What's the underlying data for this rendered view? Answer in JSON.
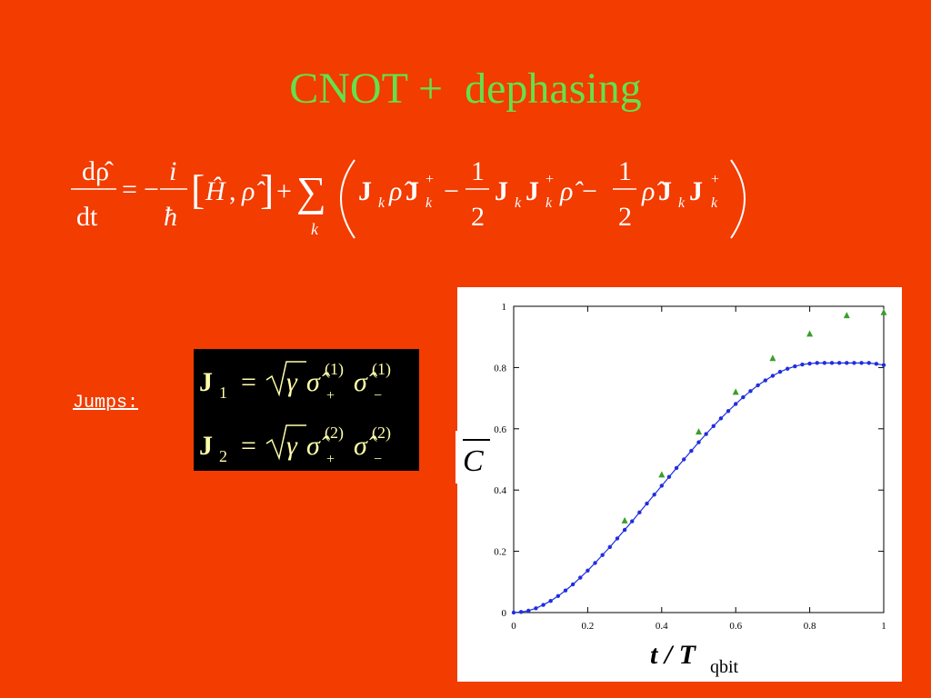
{
  "slide": {
    "title": "CNOT +  dephasing",
    "jumps_label": "Jumps:",
    "equation": {
      "lhs_num": "dρ̂",
      "lhs_den": "dt",
      "eq": "=",
      "minus": "−",
      "i": "i",
      "hbar": "ħ",
      "commutator_h": "Ĥ",
      "comma": ",",
      "rho": "ρ̂",
      "plus": "+",
      "sum": "∑",
      "sum_index": "k",
      "J": "J",
      "sub_k": "k",
      "dagger": "+",
      "one": "1",
      "two": "2"
    },
    "jumps": [
      {
        "J": "J",
        "sub": "1",
        "eq": "=",
        "gamma": "γ",
        "sigma": "σ̂",
        "sup_plus": "(1)",
        "sub_plus": "+",
        "sup_minus": "(1)",
        "sub_minus": "−"
      },
      {
        "J": "J",
        "sub": "2",
        "eq": "=",
        "gamma": "γ",
        "sigma": "σ̂",
        "sup_plus": "(2)",
        "sub_plus": "+",
        "sup_minus": "(2)",
        "sub_minus": "−"
      }
    ]
  },
  "chart_data": {
    "type": "scatter",
    "title": "",
    "ylabel": "C",
    "xlabel_main": "t / T",
    "xlabel_sub": "qbit",
    "xlim": [
      0,
      1
    ],
    "ylim": [
      0,
      1
    ],
    "x_ticks": [
      "0",
      "0.2",
      "0.4",
      "0.6",
      "0.8",
      "1"
    ],
    "y_ticks": [
      "0",
      "0.2",
      "0.4",
      "0.6",
      "0.8",
      "1"
    ],
    "grid": false,
    "series": [
      {
        "color": "#1f2ee0",
        "marker": "dot-line",
        "x": [
          0,
          0.02,
          0.04,
          0.06,
          0.08,
          0.1,
          0.12,
          0.14,
          0.16,
          0.18,
          0.2,
          0.22,
          0.24,
          0.26,
          0.28,
          0.3,
          0.32,
          0.34,
          0.36,
          0.38,
          0.4,
          0.42,
          0.44,
          0.46,
          0.48,
          0.5,
          0.52,
          0.54,
          0.56,
          0.58,
          0.6,
          0.62,
          0.64,
          0.66,
          0.68,
          0.7,
          0.72,
          0.74,
          0.76,
          0.78,
          0.8,
          0.82,
          0.84,
          0.86,
          0.88,
          0.9,
          0.92,
          0.94,
          0.96,
          0.98,
          1
        ],
        "y": [
          0,
          0.002,
          0.006,
          0.014,
          0.025,
          0.038,
          0.054,
          0.072,
          0.092,
          0.114,
          0.137,
          0.162,
          0.188,
          0.214,
          0.242,
          0.27,
          0.298,
          0.327,
          0.356,
          0.385,
          0.414,
          0.443,
          0.472,
          0.5,
          0.528,
          0.556,
          0.583,
          0.609,
          0.634,
          0.658,
          0.681,
          0.703,
          0.723,
          0.742,
          0.758,
          0.773,
          0.786,
          0.796,
          0.804,
          0.81,
          0.813,
          0.815,
          0.815,
          0.815,
          0.815,
          0.815,
          0.815,
          0.815,
          0.815,
          0.812,
          0.808
        ]
      },
      {
        "color": "#3a9e2a",
        "marker": "triangle",
        "x": [
          0.3,
          0.4,
          0.5,
          0.6,
          0.7,
          0.8,
          0.9,
          1.0
        ],
        "y": [
          0.3,
          0.45,
          0.59,
          0.72,
          0.83,
          0.91,
          0.97,
          0.98
        ]
      }
    ]
  }
}
